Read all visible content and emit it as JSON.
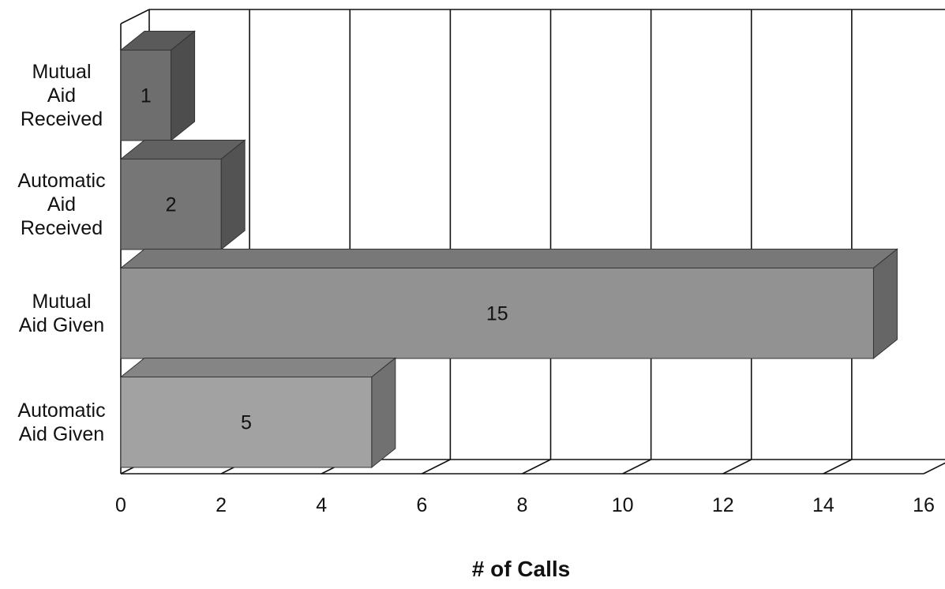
{
  "chart_data": {
    "type": "bar3d_horizontal",
    "categories": [
      "Mutual\nAid\nReceived",
      "Automatic\nAid\nReceived",
      "Mutual\nAid Given",
      "Automatic\nAid Given"
    ],
    "values": [
      1,
      2,
      15,
      5
    ],
    "colors": [
      "#6e6e6e",
      "#767676",
      "#929292",
      "#a2a2a2"
    ],
    "xlabel": "# of Calls",
    "xlim": [
      0,
      16
    ],
    "xticks": [
      0,
      2,
      4,
      6,
      8,
      10,
      12,
      14,
      16
    ],
    "grid": true
  }
}
